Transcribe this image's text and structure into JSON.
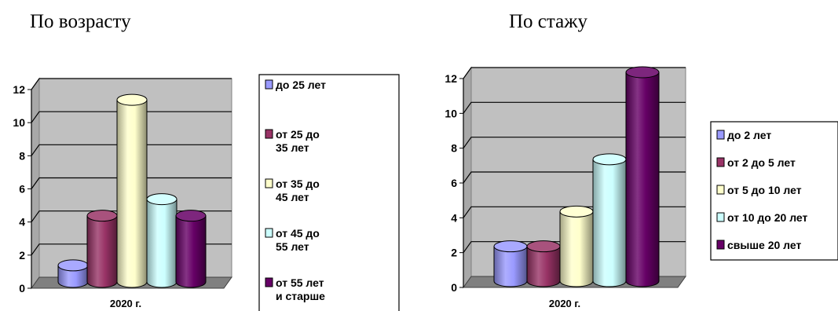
{
  "headings": {
    "left": "По возрасту",
    "right": "По стажу"
  },
  "chart_data": [
    {
      "type": "bar",
      "title": "По возрасту",
      "categories": [
        "2020 г."
      ],
      "ylim": [
        0,
        12
      ],
      "yticks": [
        "0",
        "2",
        "4",
        "6",
        "8",
        "10",
        "12"
      ],
      "grid": true,
      "legend": "right",
      "series": [
        {
          "name": "до 25 лет",
          "values": [
            1
          ],
          "color": "#9a9aff"
        },
        {
          "name": "от 25 до 35 лет",
          "values": [
            4
          ],
          "color": "#993366"
        },
        {
          "name": "от 35 до 45 лет",
          "values": [
            11
          ],
          "color": "#ffffcc"
        },
        {
          "name": "от 45 до 55 лет",
          "values": [
            5
          ],
          "color": "#ccffff"
        },
        {
          "name": "от 55 лет и старше",
          "values": [
            4
          ],
          "color": "#660066"
        }
      ]
    },
    {
      "type": "bar",
      "title": "По стажу",
      "categories": [
        "2020 г."
      ],
      "ylim": [
        0,
        12
      ],
      "yticks": [
        "0",
        "2",
        "4",
        "6",
        "8",
        "10",
        "12"
      ],
      "grid": true,
      "legend": "right",
      "series": [
        {
          "name": "до 2 лет",
          "values": [
            2
          ],
          "color": "#9a9aff"
        },
        {
          "name": "от 2 до 5 лет",
          "values": [
            2
          ],
          "color": "#993366"
        },
        {
          "name": "от 5 до 10 лет",
          "values": [
            4
          ],
          "color": "#ffffcc"
        },
        {
          "name": "от 10 до 20 лет",
          "values": [
            7
          ],
          "color": "#ccffff"
        },
        {
          "name": "свыше 20 лет",
          "values": [
            12
          ],
          "color": "#660066"
        }
      ]
    }
  ]
}
